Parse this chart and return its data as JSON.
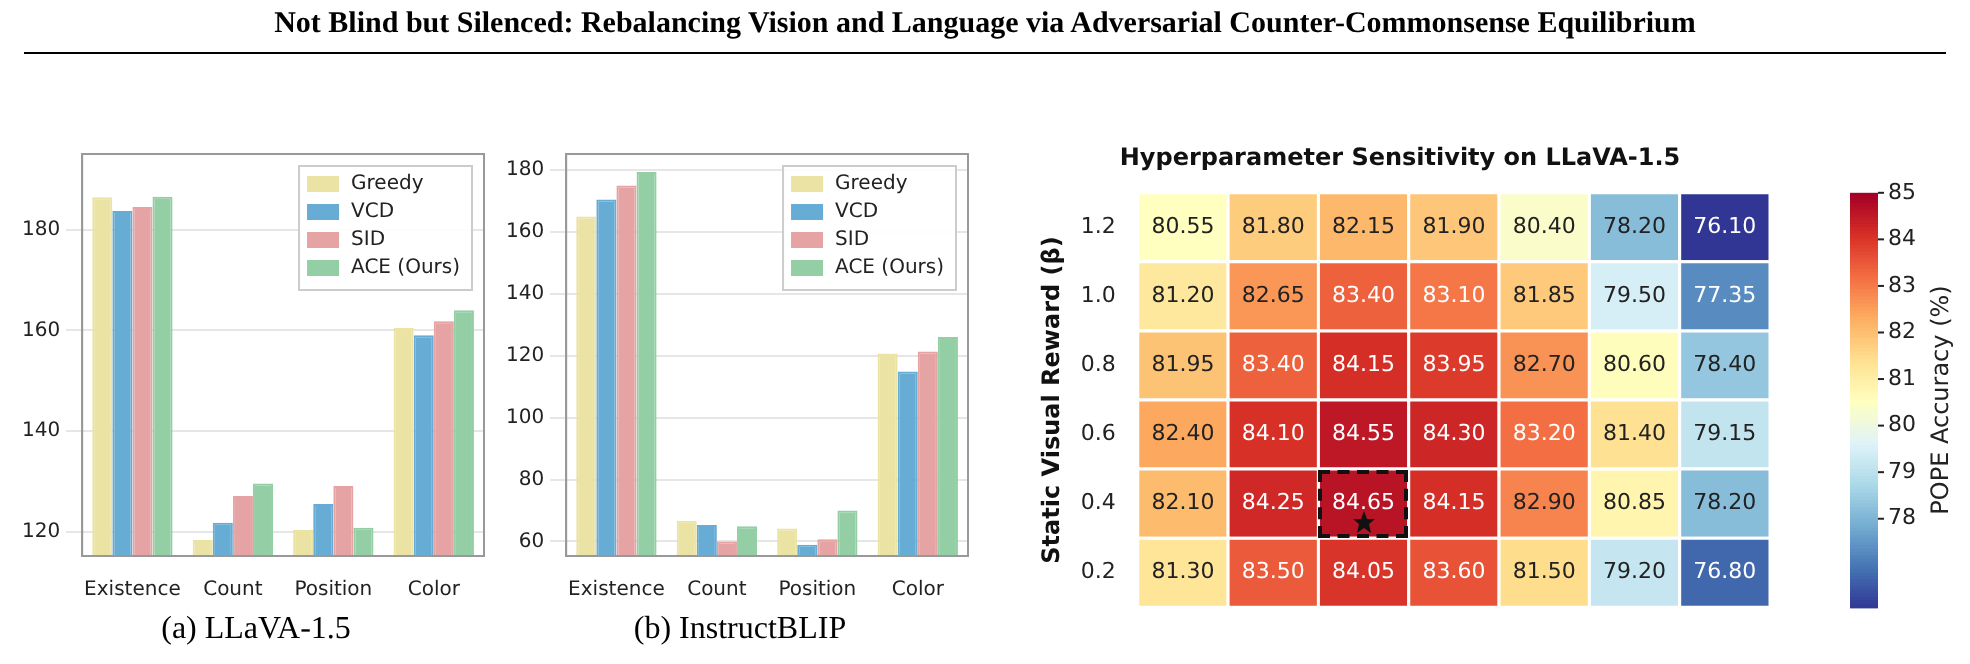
{
  "chart_data": [
    {
      "type": "bar",
      "annotations": [
        "Not Blind but Silenced: Rebalancing Vision and Language via Adversarial Counter-Commonsense Equilibrium"
      ],
      "xlabel": "(a) LLaVA-1.5",
      "categories": [
        "Existence",
        "Count",
        "Position",
        "Color"
      ],
      "series": [
        {
          "name": "Greedy",
          "color": "#ebe3a3",
          "values": [
            186.4,
            118.4,
            120.4,
            160.5
          ]
        },
        {
          "name": "VCD",
          "color": "#67acd5",
          "values": [
            183.7,
            121.8,
            125.5,
            159.0
          ]
        },
        {
          "name": "SID",
          "color": "#e5a3a3",
          "values": [
            184.5,
            127.1,
            129.1,
            161.8
          ]
        },
        {
          "name": "ACE (Ours)",
          "color": "#94cea5",
          "values": [
            186.5,
            129.6,
            120.8,
            164.0
          ]
        }
      ],
      "ylim": [
        115.2,
        195
      ],
      "yticks": [
        120,
        140,
        160,
        180
      ],
      "grid": "y",
      "legend": "top right"
    },
    {
      "type": "bar",
      "xlabel": "(b) InstructBLIP",
      "categories": [
        "Existence",
        "Count",
        "Position",
        "Color"
      ],
      "series": [
        {
          "name": "Greedy",
          "color": "#ebe3a3",
          "values": [
            164.9,
            66.7,
            64.2,
            120.7
          ]
        },
        {
          "name": "VCD",
          "color": "#67acd5",
          "values": [
            170.4,
            65.3,
            58.9,
            114.9
          ]
        },
        {
          "name": "SID",
          "color": "#e5a3a3",
          "values": [
            174.9,
            60.0,
            60.7,
            121.3
          ]
        },
        {
          "name": "ACE (Ours)",
          "color": "#94cea5",
          "values": [
            179.3,
            64.9,
            70.0,
            126.0
          ]
        }
      ],
      "ylim": [
        55.3,
        185.1
      ],
      "yticks": [
        60,
        80,
        100,
        120,
        140,
        160,
        180
      ],
      "grid": "y",
      "legend": "top right"
    },
    {
      "type": "heatmap",
      "title": "Hyperparameter Sensitivity on LLaVA-1.5",
      "ylabel": "Static Visual Reward (β)",
      "clabel": "POPE Accuracy (%)",
      "categories": [
        null,
        null,
        null,
        null,
        null,
        null,
        null
      ],
      "y_categories": [
        "1.2",
        "1.0",
        "0.8",
        "0.6",
        "0.4",
        "0.2"
      ],
      "cells": [
        [
          80.55,
          81.8,
          82.15,
          81.9,
          80.4,
          78.2,
          76.1
        ],
        [
          81.2,
          82.65,
          83.4,
          83.1,
          81.85,
          79.5,
          77.35
        ],
        [
          81.95,
          83.4,
          84.15,
          83.95,
          82.7,
          80.6,
          78.4
        ],
        [
          82.4,
          84.1,
          84.55,
          84.3,
          83.2,
          81.4,
          79.15
        ],
        [
          82.1,
          84.25,
          84.65,
          84.15,
          82.9,
          80.85,
          78.2
        ],
        [
          81.3,
          83.5,
          84.05,
          83.6,
          81.5,
          79.2,
          76.8
        ]
      ],
      "cell_labels": [
        [
          "80.55",
          "81.80",
          "82.15",
          "81.90",
          "80.40",
          "78.20",
          "76.10"
        ],
        [
          "81.20",
          "82.65",
          "83.40",
          "83.10",
          "81.85",
          "79.50",
          "77.35"
        ],
        [
          "81.95",
          "83.40",
          "84.15",
          "83.95",
          "82.70",
          "80.60",
          "78.40"
        ],
        [
          "82.40",
          "84.10",
          "84.55",
          "84.30",
          "83.20",
          "81.40",
          "79.15"
        ],
        [
          "82.10",
          "84.25",
          "84.65",
          "84.15",
          "82.90",
          "80.85",
          "78.20"
        ],
        [
          "81.30",
          "83.50",
          "84.05",
          "83.60",
          "81.50",
          "79.20",
          "76.80"
        ]
      ],
      "clim": [
        76.1,
        85
      ],
      "cticks": [
        78,
        79,
        80,
        81,
        82,
        83,
        84,
        85
      ]
    }
  ]
}
